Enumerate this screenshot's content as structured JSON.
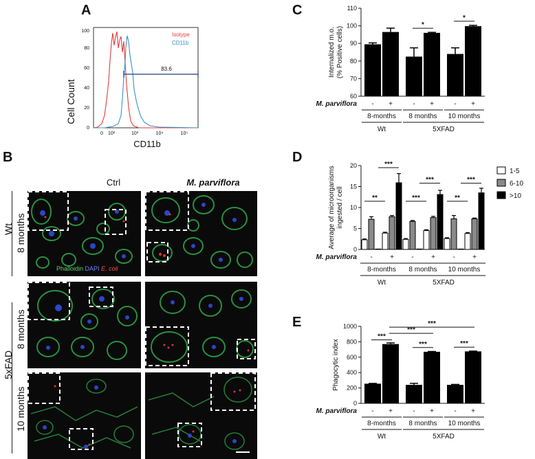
{
  "panels": {
    "a": "A",
    "b": "B",
    "c": "C",
    "d": "D",
    "e": "E"
  },
  "panel_a": {
    "ylabel": "Cell Count",
    "xlabel": "CD11b",
    "legend": [
      {
        "name": "Isotype",
        "color": "#e23a3a"
      },
      {
        "name": "CD11b",
        "color": "#3b8fc4"
      }
    ],
    "gate_value": "83.6",
    "yticks": [
      "0",
      "20",
      "40",
      "60",
      "80",
      "100"
    ],
    "xticks": [
      "0",
      "10²",
      "10³",
      "10⁴",
      "10⁵"
    ]
  },
  "panel_b": {
    "col_ctrl": "Ctrl",
    "col_mp": "M. parviflora",
    "row_wt": "Wt",
    "row_5xfad": "5xFAD",
    "age_8": "8 months",
    "age_10": "10 months",
    "stain_phalloidin": "Phalloidin",
    "stain_dapi": "DAPI",
    "stain_ecoli": "E. coli"
  },
  "treatment_label": "M. parviflora",
  "signs": [
    "-",
    "+"
  ],
  "groups": [
    "8-months",
    "8 months",
    "10 months"
  ],
  "genotypes": [
    "Wt",
    "5XFAD"
  ],
  "chart_data": [
    {
      "panel": "C",
      "type": "bar",
      "ylabel": "Internalized m.o. (% Positive cells)",
      "ylabel_lines": [
        "Internalized m.o.",
        "(% Positive cells)"
      ],
      "ylim": [
        60,
        110
      ],
      "yticks": [
        60,
        70,
        80,
        90,
        100,
        110
      ],
      "categories": [
        "8-months -",
        "8-months +",
        "8 months -",
        "8 months +",
        "10 months -",
        "10 months +"
      ],
      "values": [
        89.5,
        96.5,
        82.5,
        96,
        84,
        99.8
      ],
      "errors": [
        0.8,
        2.2,
        5,
        0.3,
        3.5,
        0.5
      ],
      "significance": [
        {
          "between": [
            2,
            3
          ],
          "label": "*"
        },
        {
          "between": [
            4,
            5
          ],
          "label": "*"
        }
      ]
    },
    {
      "panel": "D",
      "type": "bar",
      "ylabel": "Average of microorganisms ingested / cell",
      "ylabel_lines": [
        "Average of microorganisms",
        "ingested / cell"
      ],
      "ylim": [
        0,
        20
      ],
      "yticks": [
        0,
        5,
        10,
        15,
        20
      ],
      "categories": [
        "8-months -",
        "8-months +",
        "8 months -",
        "8 months +",
        "10 months -",
        "10 months +"
      ],
      "series": [
        {
          "name": "1-5",
          "color": "#ffffff",
          "values": [
            2.3,
            3.9,
            2.4,
            4.5,
            2.6,
            3.8
          ],
          "errors": [
            0.2,
            0.2,
            0.2,
            0.2,
            0.2,
            0.2
          ]
        },
        {
          "name": "6-10",
          "color": "#8a8a8a",
          "values": [
            7.2,
            7.8,
            6.7,
            7.6,
            7.3,
            7.3
          ],
          "errors": [
            0.6,
            0.3,
            0.2,
            0.3,
            0.8,
            0.2
          ]
        },
        {
          "name": ">10",
          "color": "#000000",
          "values": [
            0.1,
            15.9,
            0.1,
            13.1,
            0.1,
            13.5
          ],
          "errors": [
            0,
            2.2,
            0,
            1.0,
            0,
            1.1
          ]
        }
      ],
      "legend": "top-right",
      "significance": [
        {
          "label": "**",
          "between": [
            0,
            1
          ]
        },
        {
          "label": "***",
          "between": [
            1,
            1
          ]
        },
        {
          "label": "***",
          "between": [
            2,
            3
          ]
        },
        {
          "label": "***",
          "between": [
            3,
            3
          ]
        },
        {
          "label": "**",
          "between": [
            4,
            5
          ]
        },
        {
          "label": "***",
          "between": [
            5,
            5
          ]
        }
      ]
    },
    {
      "panel": "E",
      "type": "bar",
      "ylabel": "Phagocytic index",
      "ylim": [
        0,
        1000
      ],
      "yticks": [
        0,
        200,
        400,
        600,
        800,
        1000
      ],
      "categories": [
        "8-months -",
        "8-months +",
        "8 months -",
        "8 months +",
        "10 months -",
        "10 months +"
      ],
      "values": [
        255,
        770,
        240,
        670,
        240,
        675
      ],
      "errors": [
        4,
        15,
        20,
        4,
        6,
        4
      ],
      "significance": [
        {
          "label": "***",
          "between": [
            0,
            1
          ]
        },
        {
          "label": "***",
          "between": [
            2,
            3
          ]
        },
        {
          "label": "***",
          "between": [
            4,
            5
          ]
        },
        {
          "label": "***",
          "between": [
            1,
            3
          ]
        },
        {
          "label": "***",
          "between": [
            1,
            5
          ]
        }
      ]
    }
  ]
}
